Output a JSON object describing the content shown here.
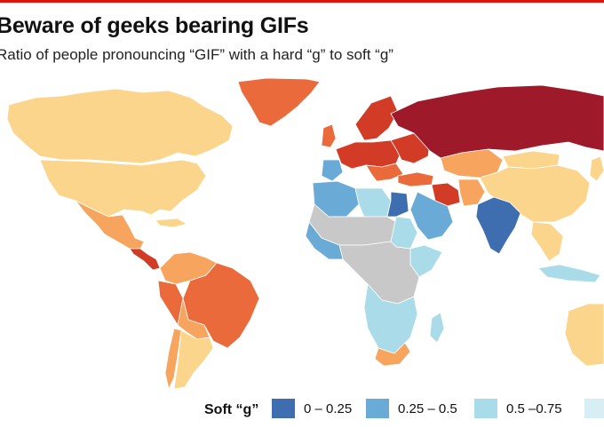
{
  "title": "Beware of geeks bearing GIFs",
  "subtitle": "Ratio of people pronouncing “GIF” with a hard “g” to soft “g”",
  "legend": {
    "title": "Soft “g”",
    "items": [
      {
        "label": "0 – 0.25",
        "color": "#3f6eb0"
      },
      {
        "label": "0.25 – 0.5",
        "color": "#6aaad6"
      },
      {
        "label": "0.5 –0.75",
        "color": "#a9dbe8"
      },
      {
        "label": "",
        "color": "#d6eef4"
      }
    ]
  },
  "colors": {
    "accent_rule": "#e3120b",
    "ocean": "#ffffff",
    "no_data": "#c8c8c8",
    "mid": "#fbd58b",
    "hard_1": "#f6a45e",
    "hard_2": "#ea6a3b",
    "hard_3": "#d23c27",
    "hard_4": "#9e1a2a"
  }
}
